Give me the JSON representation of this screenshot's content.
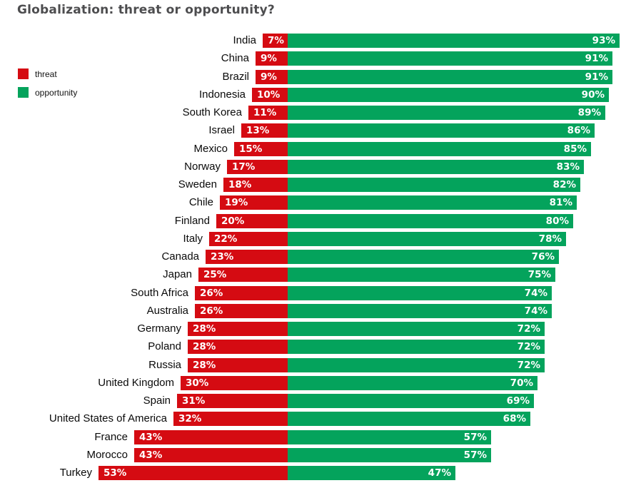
{
  "chart_data": {
    "type": "bar",
    "variant": "horizontal-diverging-stacked",
    "title": "Globalization: threat or opportunity?",
    "unit": "%",
    "legend": [
      {
        "label": "threat",
        "color": "#d50b12"
      },
      {
        "label": "opportunity",
        "color": "#04a35c"
      }
    ],
    "legend_position": "left",
    "categories": [
      "India",
      "China",
      "Brazil",
      "Indonesia",
      "South Korea",
      "Israel",
      "Mexico",
      "Norway",
      "Sweden",
      "Chile",
      "Finland",
      "Italy",
      "Canada",
      "Japan",
      "South Africa",
      "Australia",
      "Germany",
      "Poland",
      "Russia",
      "United Kingdom",
      "Spain",
      "United States of America",
      "France",
      "Morocco",
      "Turkey"
    ],
    "series": [
      {
        "name": "threat",
        "color": "#d50b12",
        "values": [
          7,
          9,
          9,
          10,
          11,
          13,
          15,
          17,
          18,
          19,
          20,
          22,
          23,
          25,
          26,
          26,
          28,
          28,
          28,
          30,
          31,
          32,
          43,
          43,
          53
        ]
      },
      {
        "name": "opportunity",
        "color": "#04a35c",
        "values": [
          93,
          91,
          91,
          90,
          89,
          86,
          85,
          83,
          82,
          81,
          80,
          78,
          76,
          75,
          74,
          74,
          72,
          72,
          72,
          70,
          69,
          68,
          57,
          57,
          47
        ]
      }
    ],
    "value_labels": "inside-bars",
    "axis": "none",
    "grid": false
  },
  "colors": {
    "title": "#4d4d4f",
    "country_label": "#0a0a0a",
    "bar_value_label": "#ffffff",
    "background": "#ffffff"
  }
}
